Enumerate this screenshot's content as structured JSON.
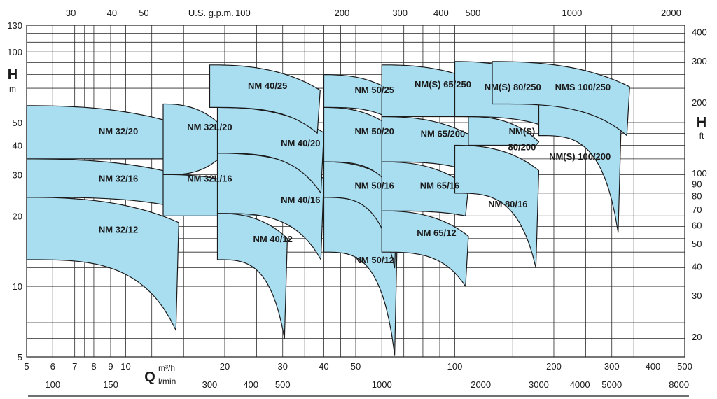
{
  "chart_data": {
    "type": "area",
    "scale": "log-log",
    "grid": true,
    "axes": {
      "bottom": {
        "name": "Q",
        "unit": "m³/h",
        "range": [
          5,
          500
        ],
        "ticks": [
          "5",
          "6",
          "7",
          "8",
          "9",
          "10",
          "20",
          "30",
          "40",
          "50",
          "100",
          "200",
          "300",
          "400",
          "500"
        ]
      },
      "bottom2": {
        "unit": "l/min",
        "ticks": [
          "100",
          "150",
          "300",
          "400",
          "500",
          "1000",
          "2000",
          "3000",
          "4000",
          "5000",
          "8000"
        ]
      },
      "top": {
        "unit": "U.S. g.p.m.",
        "ticks": [
          "30",
          "40",
          "50",
          "100",
          "200",
          "300",
          "400",
          "500",
          "1000",
          "2000"
        ]
      },
      "left": {
        "name": "H",
        "unit": "m",
        "range": [
          5,
          130
        ],
        "ticks": [
          "5",
          "10",
          "20",
          "30",
          "40",
          "50",
          "100",
          "130"
        ]
      },
      "right": {
        "name": "H",
        "unit": "ft",
        "ticks": [
          "20",
          "30",
          "40",
          "50",
          "60",
          "70",
          "80",
          "90",
          "100",
          "200",
          "300",
          "400"
        ]
      }
    },
    "series": [
      {
        "name": "NM 32/12",
        "q_min": 5,
        "q_max": 14.5,
        "h_top_start": 24,
        "h_bottom_start": 13,
        "h_min": 6.5
      },
      {
        "name": "NM 32/16",
        "q_min": 5,
        "q_max": 18,
        "h_top_start": 35,
        "h_bottom_start": 24,
        "h_min": 20
      },
      {
        "name": "NM 32/20",
        "q_min": 5,
        "q_max": 16.5,
        "h_top_start": 59,
        "h_bottom_start": 35,
        "h_min": 35
      },
      {
        "name": "NM 32L/16",
        "q_min": 13,
        "q_max": 28,
        "h_top_start": 30,
        "h_bottom_start": 20,
        "h_min": 20
      },
      {
        "name": "NM 32L/20",
        "q_min": 13,
        "q_max": 20,
        "h_top_start": 60,
        "h_bottom_start": 30,
        "h_min": 36
      },
      {
        "name": "NM 40/12",
        "q_min": 19,
        "q_max": 31,
        "h_top_start": 20.5,
        "h_bottom_start": 13,
        "h_min": 6
      },
      {
        "name": "NM 40/16",
        "q_min": 19,
        "q_max": 40,
        "h_top_start": 37,
        "h_bottom_start": 20.5,
        "h_min": 13
      },
      {
        "name": "NM 40/20",
        "q_min": 19,
        "q_max": 40,
        "h_top_start": 58,
        "h_bottom_start": 37,
        "h_min": 25
      },
      {
        "name": "NM 40/25",
        "q_min": 18,
        "q_max": 39,
        "h_top_start": 88,
        "h_bottom_start": 58,
        "h_min": 45
      },
      {
        "name": "NM 50/12",
        "q_min": 40,
        "q_max": 67,
        "h_top_start": 24,
        "h_bottom_start": 14,
        "h_min": 5.1
      },
      {
        "name": "NM 50/16",
        "q_min": 40,
        "q_max": 67,
        "h_top_start": 34,
        "h_bottom_start": 24,
        "h_min": 12
      },
      {
        "name": "NM 50/20",
        "q_min": 40,
        "q_max": 67,
        "h_top_start": 58,
        "h_bottom_start": 34,
        "h_min": 25
      },
      {
        "name": "NM 50/25",
        "q_min": 40,
        "q_max": 70,
        "h_top_start": 80,
        "h_bottom_start": 58,
        "h_min": 48
      },
      {
        "name": "NM 65/12",
        "q_min": 60,
        "q_max": 110,
        "h_top_start": 21,
        "h_bottom_start": 14,
        "h_min": 10
      },
      {
        "name": "NM 65/16",
        "q_min": 60,
        "q_max": 110,
        "h_top_start": 34,
        "h_bottom_start": 21,
        "h_min": 20
      },
      {
        "name": "NM 65/200",
        "q_min": 60,
        "q_max": 120,
        "h_top_start": 53,
        "h_bottom_start": 34,
        "h_min": 30
      },
      {
        "name": "NM(S) 65/250",
        "q_min": 60,
        "q_max": 130,
        "h_top_start": 88,
        "h_bottom_start": 53,
        "h_min": 53
      },
      {
        "name": "NM 80/16",
        "q_min": 100,
        "q_max": 180,
        "h_top_start": 40,
        "h_bottom_start": 25,
        "h_min": 12
      },
      {
        "name": "NM(S) 80/200",
        "q_min": 110,
        "q_max": 180,
        "h_top_start": 53,
        "h_bottom_start": 40,
        "h_min": 40
      },
      {
        "name": "NM(S) 80/250",
        "q_min": 100,
        "q_max": 200,
        "h_top_start": 91,
        "h_bottom_start": 53,
        "h_min": 47
      },
      {
        "name": "NM(S) 100/200",
        "q_min": 180,
        "q_max": 320,
        "h_top_start": 60,
        "h_bottom_start": 44,
        "h_min": 17
      },
      {
        "name": "NMS 100/250",
        "q_min": 130,
        "q_max": 340,
        "h_top_start": 91,
        "h_bottom_start": 60,
        "h_min": 44
      }
    ]
  },
  "labels": [
    {
      "text": "NM 32/12",
      "q": 9.5,
      "h": 17.5
    },
    {
      "text": "NM 32/16",
      "q": 9.5,
      "h": 29
    },
    {
      "text": "NM 32/20",
      "q": 9.5,
      "h": 46
    },
    {
      "text": "NM 32L/16",
      "q": 18,
      "h": 29
    },
    {
      "text": "NM 32L/20",
      "q": 18,
      "h": 48
    },
    {
      "text": "NM 40/12",
      "q": 28,
      "h": 16
    },
    {
      "text": "NM 40/16",
      "q": 34,
      "h": 23.5
    },
    {
      "text": "NM 40/20",
      "q": 34,
      "h": 41
    },
    {
      "text": "NM 40/25",
      "q": 27,
      "h": 72
    },
    {
      "text": "NM 50/12",
      "q": 57,
      "h": 13
    },
    {
      "text": "NM 50/16",
      "q": 57,
      "h": 27
    },
    {
      "text": "NM 50/20",
      "q": 57,
      "h": 46
    },
    {
      "text": "NM 50/25",
      "q": 57,
      "h": 69
    },
    {
      "text": "NM 65/12",
      "q": 88,
      "h": 17
    },
    {
      "text": "NM 65/16",
      "q": 90,
      "h": 27
    },
    {
      "text": "NM 65/200",
      "q": 92,
      "h": 45
    },
    {
      "text": "NM(S) 65/250",
      "q": 92,
      "h": 73
    },
    {
      "text": "NM 80/16",
      "q": 145,
      "h": 22.5
    },
    {
      "text": "NM(S)",
      "q": 160,
      "h": 46
    },
    {
      "text": "80/200",
      "q": 160,
      "h": 39.5
    },
    {
      "text": "NM(S) 80/250",
      "q": 150,
      "h": 71
    },
    {
      "text": "NM(S) 100/200",
      "q": 240,
      "h": 36
    },
    {
      "text": "NMS 100/250",
      "q": 245,
      "h": 71
    }
  ]
}
